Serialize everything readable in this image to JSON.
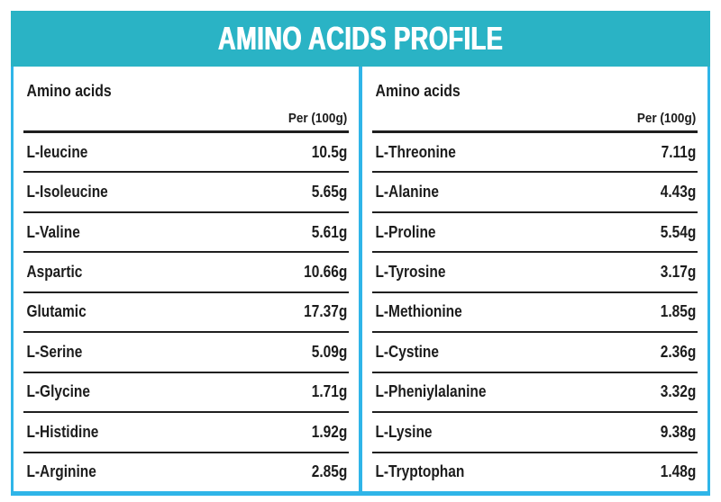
{
  "title": "AMINO ACIDS PROFILE",
  "colors": {
    "band_teal": "#2ab3c5",
    "border_cyan": "#2fb5e8",
    "rule_dark": "#1f1f1f",
    "text_dark": "#1c1c1c",
    "title_white": "#ffffff"
  },
  "panels": [
    {
      "header": "Amino acids",
      "unit_label": "Per (100g)",
      "rows": [
        {
          "name": "L-leucine",
          "value": "10.5g"
        },
        {
          "name": "L-Isoleucine",
          "value": "5.65g"
        },
        {
          "name": "L-Valine",
          "value": "5.61g"
        },
        {
          "name": "Aspartic",
          "value": "10.66g"
        },
        {
          "name": "Glutamic",
          "value": "17.37g"
        },
        {
          "name": "L-Serine",
          "value": "5.09g"
        },
        {
          "name": "L-Glycine",
          "value": "1.71g"
        },
        {
          "name": "L-Histidine",
          "value": "1.92g"
        },
        {
          "name": "L-Arginine",
          "value": "2.85g"
        }
      ]
    },
    {
      "header": "Amino acids",
      "unit_label": "Per (100g)",
      "rows": [
        {
          "name": "L-Threonine",
          "value": "7.11g"
        },
        {
          "name": "L-Alanine",
          "value": "4.43g"
        },
        {
          "name": "L-Proline",
          "value": "5.54g"
        },
        {
          "name": "L-Tyrosine",
          "value": "3.17g"
        },
        {
          "name": "L-Methionine",
          "value": "1.85g"
        },
        {
          "name": "L-Cystine",
          "value": "2.36g"
        },
        {
          "name": "L-Pheniylalanine",
          "value": "3.32g"
        },
        {
          "name": "L-Lysine",
          "value": "9.38g"
        },
        {
          "name": "L-Tryptophan",
          "value": "1.48g"
        }
      ]
    }
  ],
  "chart_data": {
    "type": "table",
    "title": "AMINO ACIDS PROFILE",
    "columns": [
      "Amino acids",
      "Per (100g)"
    ],
    "rows": [
      [
        "L-leucine",
        "10.5g"
      ],
      [
        "L-Isoleucine",
        "5.65g"
      ],
      [
        "L-Valine",
        "5.61g"
      ],
      [
        "Aspartic",
        "10.66g"
      ],
      [
        "Glutamic",
        "17.37g"
      ],
      [
        "L-Serine",
        "5.09g"
      ],
      [
        "L-Glycine",
        "1.71g"
      ],
      [
        "L-Histidine",
        "1.92g"
      ],
      [
        "L-Arginine",
        "2.85g"
      ],
      [
        "L-Threonine",
        "7.11g"
      ],
      [
        "L-Alanine",
        "4.43g"
      ],
      [
        "L-Proline",
        "5.54g"
      ],
      [
        "L-Tyrosine",
        "3.17g"
      ],
      [
        "L-Methionine",
        "1.85g"
      ],
      [
        "L-Cystine",
        "2.36g"
      ],
      [
        "L-Pheniylalanine",
        "3.32g"
      ],
      [
        "L-Lysine",
        "9.38g"
      ],
      [
        "L-Tryptophan",
        "1.48g"
      ]
    ]
  }
}
